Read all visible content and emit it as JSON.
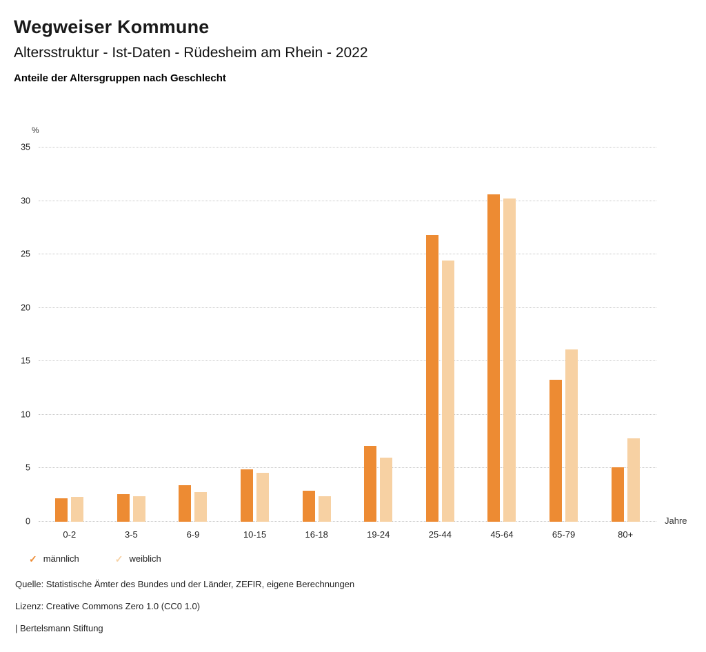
{
  "header": {
    "title": "Wegweiser Kommune",
    "subtitle": "Altersstruktur - Ist-Daten - Rüdesheim am Rhein - 2022",
    "caption": "Anteile der Altersgruppen nach Geschlecht"
  },
  "chart_data": {
    "type": "bar",
    "title": "Anteile der Altersgruppen nach Geschlecht",
    "categories": [
      "0-2",
      "3-5",
      "6-9",
      "10-15",
      "16-18",
      "19-24",
      "25-44",
      "45-64",
      "65-79",
      "80+"
    ],
    "series": [
      {
        "name": "männlich",
        "color": "#ED8B33",
        "values": [
          2.2,
          2.6,
          3.4,
          4.9,
          2.9,
          7.1,
          26.8,
          30.6,
          13.3,
          5.1
        ]
      },
      {
        "name": "weiblich",
        "color": "#F7D1A3",
        "values": [
          2.3,
          2.4,
          2.8,
          4.6,
          2.4,
          6.0,
          24.4,
          30.2,
          16.1,
          7.8
        ]
      }
    ],
    "y_unit": "%",
    "x_unit": "Jahre",
    "ylim": [
      0,
      35
    ],
    "ytick_step": 5,
    "grid": true,
    "grid_style": "dotted",
    "legend_position": "bottom"
  },
  "legend": {
    "check_glyph": "✓",
    "items": [
      {
        "label": "männlich",
        "color": "#ED8B33"
      },
      {
        "label": "weiblich",
        "color": "#F7D1A3"
      }
    ]
  },
  "footer": {
    "source": "Quelle: Statistische Ämter des Bundes und der Länder, ZEFIR, eigene Berechnungen",
    "license": "Lizenz: Creative Commons Zero 1.0 (CC0 1.0)",
    "attribution": "| Bertelsmann Stiftung"
  }
}
